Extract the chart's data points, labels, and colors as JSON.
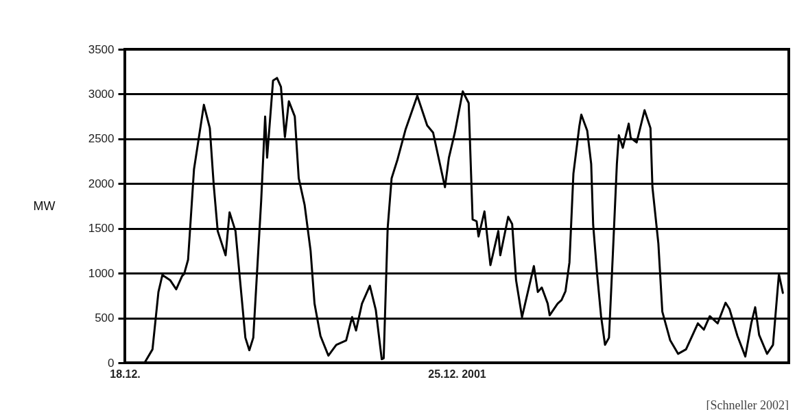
{
  "chart_data": {
    "type": "line",
    "ylabel": "MW",
    "annotations": [
      "[Schneller 2002]"
    ],
    "xlim": [
      "2001-12-18",
      "2002-01-01"
    ],
    "xticks": [
      {
        "value": "2001-12-18",
        "label": "18.12."
      },
      {
        "value": "2001-12-25",
        "label": "25.12. 2001"
      }
    ],
    "ylim": [
      0,
      3500
    ],
    "yticks": [
      0,
      500,
      1000,
      1500,
      2000,
      2500,
      3000,
      3500
    ],
    "grid": "y",
    "x": [
      "2001-12-18T02:00",
      "2001-12-18T10:00",
      "2001-12-18T14:00",
      "2001-12-18T17:00",
      "2001-12-18T19:00",
      "2001-12-18T23:00",
      "2001-12-19T02:00",
      "2001-12-19T05:00",
      "2001-12-19T06:00",
      "2001-12-19T08:00",
      "2001-12-19T11:00",
      "2001-12-19T16:00",
      "2001-12-19T19:00",
      "2001-12-19T21:00",
      "2001-12-19T23:00",
      "2001-12-20T03:00",
      "2001-12-20T05:00",
      "2001-12-20T08:00",
      "2001-12-20T13:00",
      "2001-12-20T15:00",
      "2001-12-20T17:00",
      "2001-12-20T21:00",
      "2001-12-20T23:00",
      "2001-12-21T00:00",
      "2001-12-21T03:00",
      "2001-12-21T05:00",
      "2001-12-21T07:00",
      "2001-12-21T09:00",
      "2001-12-21T11:00",
      "2001-12-21T14:00",
      "2001-12-21T16:00",
      "2001-12-21T19:00",
      "2001-12-21T22:00",
      "2001-12-22T00:00",
      "2001-12-22T03:00",
      "2001-12-22T07:00",
      "2001-12-22T11:00",
      "2001-12-22T16:00",
      "2001-12-22T19:00",
      "2001-12-22T21:00",
      "2001-12-23T00:00",
      "2001-12-23T04:00",
      "2001-12-23T07:00",
      "2001-12-23T10:00",
      "2001-12-23T11:00",
      "2001-12-23T13:00",
      "2001-12-23T15:00",
      "2001-12-23T18:00",
      "2001-12-23T22:00",
      "2001-12-24T04:00",
      "2001-12-24T09:00",
      "2001-12-24T12:00",
      "2001-12-24T18:00",
      "2001-12-24T20:00",
      "2001-12-24T23:00",
      "2001-12-25T03:00",
      "2001-12-25T06:00",
      "2001-12-25T08:00",
      "2001-12-25T10:00",
      "2001-12-25T11:00",
      "2001-12-25T14:00",
      "2001-12-25T17:00",
      "2001-12-25T21:00",
      "2001-12-25T22:00",
      "2001-12-26T02:00",
      "2001-12-26T04:00",
      "2001-12-26T06:00",
      "2001-12-26T09:00",
      "2001-12-26T15:00",
      "2001-12-26T17:00",
      "2001-12-26T19:00",
      "2001-12-26T22:00",
      "2001-12-26T23:00",
      "2001-12-27T03:00",
      "2001-12-27T05:00",
      "2001-12-27T07:00",
      "2001-12-27T09:00",
      "2001-12-27T11:00",
      "2001-12-27T14:00",
      "2001-12-27T15:00",
      "2001-12-27T18:00",
      "2001-12-27T20:00",
      "2001-12-27T21:00",
      "2001-12-27T23:00",
      "2001-12-28T01:00",
      "2001-12-28T03:00",
      "2001-12-28T05:00",
      "2001-12-28T07:00",
      "2001-12-28T09:00",
      "2001-12-28T10:00",
      "2001-12-28T12:00",
      "2001-12-28T15:00",
      "2001-12-28T16:00",
      "2001-12-28T19:00",
      "2001-12-28T23:00",
      "2001-12-29T02:00",
      "2001-12-29T03:00",
      "2001-12-29T06:00",
      "2001-12-29T08:00",
      "2001-12-29T12:00",
      "2001-12-29T16:00",
      "2001-12-29T20:00",
      "2001-12-30T02:00",
      "2001-12-30T05:00",
      "2001-12-30T08:00",
      "2001-12-30T12:00",
      "2001-12-30T16:00",
      "2001-12-30T18:00",
      "2001-12-30T22:00",
      "2001-12-31T02:00",
      "2001-12-31T05:00",
      "2001-12-31T07:00",
      "2001-12-31T09:00",
      "2001-12-31T13:00",
      "2001-12-31T16:00",
      "2001-12-31T19:00",
      "2001-12-31T21:00"
    ],
    "series": [
      {
        "color": "#000000",
        "values": [
          0,
          0,
          150,
          790,
          980,
          920,
          820,
          970,
          990,
          1150,
          2160,
          2880,
          2620,
          1980,
          1470,
          1200,
          1680,
          1470,
          280,
          140,
          280,
          1810,
          2750,
          2290,
          3150,
          3180,
          3080,
          2520,
          2920,
          2750,
          2060,
          1760,
          1250,
          660,
          300,
          80,
          200,
          250,
          510,
          360,
          660,
          860,
          590,
          40,
          50,
          1500,
          2060,
          2270,
          2600,
          2980,
          2650,
          2570,
          1960,
          2290,
          2570,
          3030,
          2900,
          1600,
          1580,
          1410,
          1690,
          1090,
          1470,
          1200,
          1630,
          1550,
          920,
          510,
          1080,
          790,
          840,
          660,
          530,
          660,
          700,
          800,
          1120,
          2110,
          2640,
          2770,
          2590,
          2220,
          1540,
          990,
          520,
          200,
          280,
          1230,
          2220,
          2540,
          2400,
          2670,
          2510,
          2460,
          2820,
          2620,
          1960,
          1330,
          570,
          250,
          100,
          150,
          440,
          370,
          520,
          440,
          670,
          600,
          300,
          70,
          440,
          620,
          310,
          100,
          200,
          990,
          780
        ]
      }
    ]
  }
}
